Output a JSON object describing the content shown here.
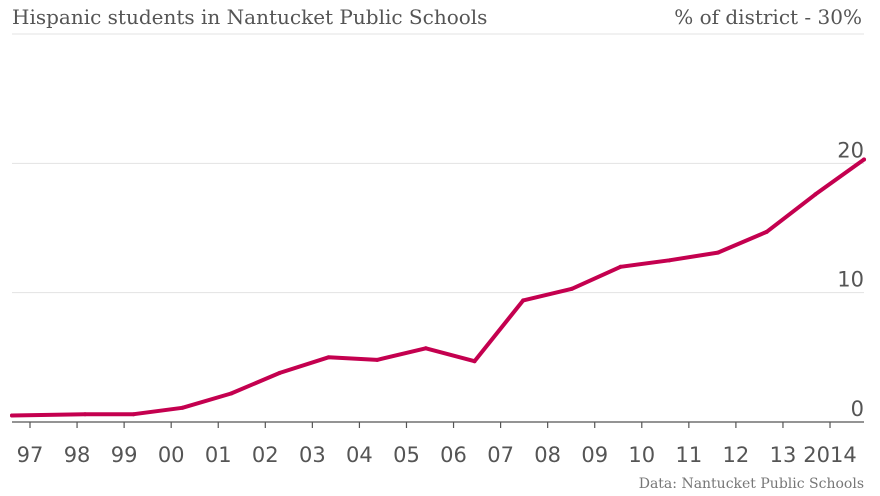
{
  "chart_data": {
    "type": "line",
    "title": "Hispanic students in Nantucket Public Schools",
    "unit_label": "% of district - 30%",
    "source": "Data: Nantucket Public Schools",
    "x": [
      1996.5,
      1998,
      1999,
      2000,
      2001,
      2002,
      2003,
      2004,
      2005,
      2006,
      2007,
      2008,
      2009,
      2010,
      2011,
      2012,
      2013,
      2014
    ],
    "x_tick_values": [
      1997,
      1998,
      1999,
      2000,
      2001,
      2002,
      2003,
      2004,
      2005,
      2006,
      2007,
      2008,
      2009,
      2010,
      2011,
      2012,
      2013,
      2014
    ],
    "x_tick_labels": [
      "97",
      "98",
      "99",
      "00",
      "01",
      "02",
      "03",
      "04",
      "05",
      "06",
      "07",
      "08",
      "09",
      "10",
      "11",
      "12",
      "13",
      "2014"
    ],
    "series": [
      {
        "values": [
          0.5,
          0.6,
          0.6,
          1.1,
          2.2,
          3.8,
          5.0,
          4.8,
          5.7,
          4.7,
          9.4,
          10.3,
          12.0,
          12.5,
          13.1,
          14.7,
          17.6,
          20.3
        ],
        "color": "#c4004f"
      }
    ],
    "y_ticks": [
      0,
      10,
      20
    ],
    "y_tick_labels": [
      "0",
      "10",
      "20"
    ],
    "ylim": [
      0,
      30
    ],
    "xlim": [
      1996.5,
      2014
    ],
    "grid": true
  }
}
